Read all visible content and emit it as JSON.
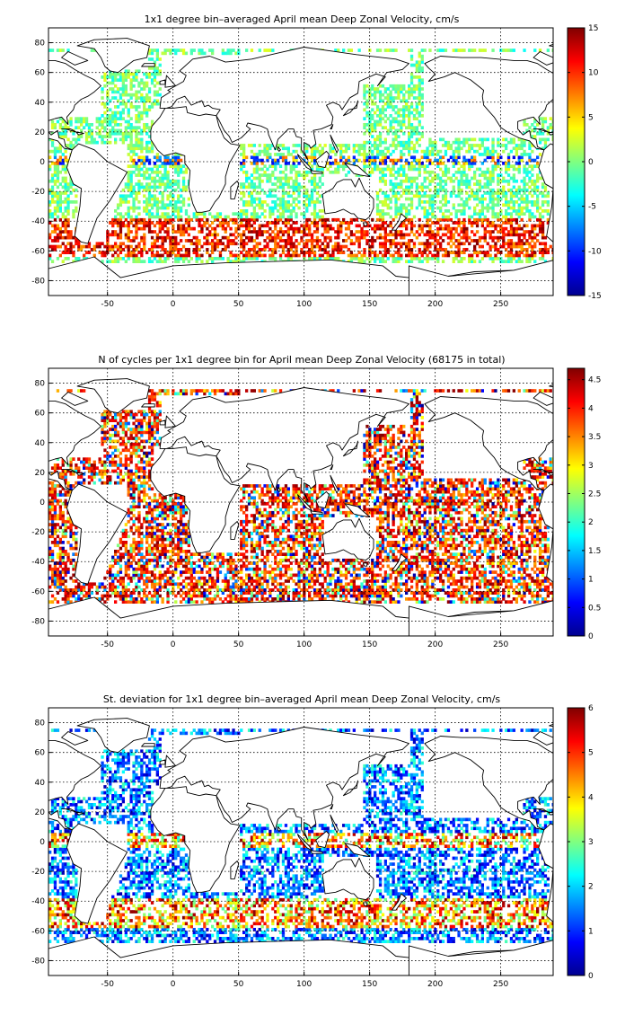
{
  "chart_data": [
    {
      "type": "heatmap",
      "title": "1x1 degree bin–averaged April mean Deep Zonal Velocity, cm/s",
      "xlim": [
        -95,
        290
      ],
      "ylim": [
        -90,
        90
      ],
      "xticks": [
        -50,
        0,
        50,
        100,
        150,
        200,
        250
      ],
      "yticks": [
        80,
        60,
        40,
        20,
        0,
        -20,
        -40,
        -60,
        -80
      ],
      "grid": true,
      "colormap": "jet",
      "clim": [
        -15,
        15
      ],
      "colorbar_ticks": [
        15,
        10,
        5,
        0,
        -5,
        -10,
        -15
      ],
      "colorbar_position": "right"
    },
    {
      "type": "heatmap",
      "title": "N of cycles per 1x1 degree bin for April mean Deep Zonal Velocity (68175 in total)",
      "xlim": [
        -95,
        290
      ],
      "ylim": [
        -90,
        90
      ],
      "xticks": [
        -50,
        0,
        50,
        100,
        150,
        200,
        250
      ],
      "yticks": [
        80,
        60,
        40,
        20,
        0,
        -20,
        -40,
        -60,
        -80
      ],
      "grid": true,
      "colormap": "jet",
      "clim": [
        0,
        4.7
      ],
      "colorbar_ticks": [
        4.5,
        4,
        3.5,
        3,
        2.5,
        2,
        1.5,
        1,
        0.5,
        0
      ],
      "colorbar_position": "right"
    },
    {
      "type": "heatmap",
      "title": "St. deviation for 1x1 degree bin–averaged April mean Deep Zonal Velocity, cm/s",
      "xlim": [
        -95,
        290
      ],
      "ylim": [
        -90,
        90
      ],
      "xticks": [
        -50,
        0,
        50,
        100,
        150,
        200,
        250
      ],
      "yticks": [
        80,
        60,
        40,
        20,
        0,
        -20,
        -40,
        -60,
        -80
      ],
      "grid": true,
      "colormap": "jet",
      "clim": [
        0,
        6
      ],
      "colorbar_ticks": [
        6,
        5,
        4,
        3,
        2,
        1,
        0
      ],
      "colorbar_position": "right"
    }
  ]
}
